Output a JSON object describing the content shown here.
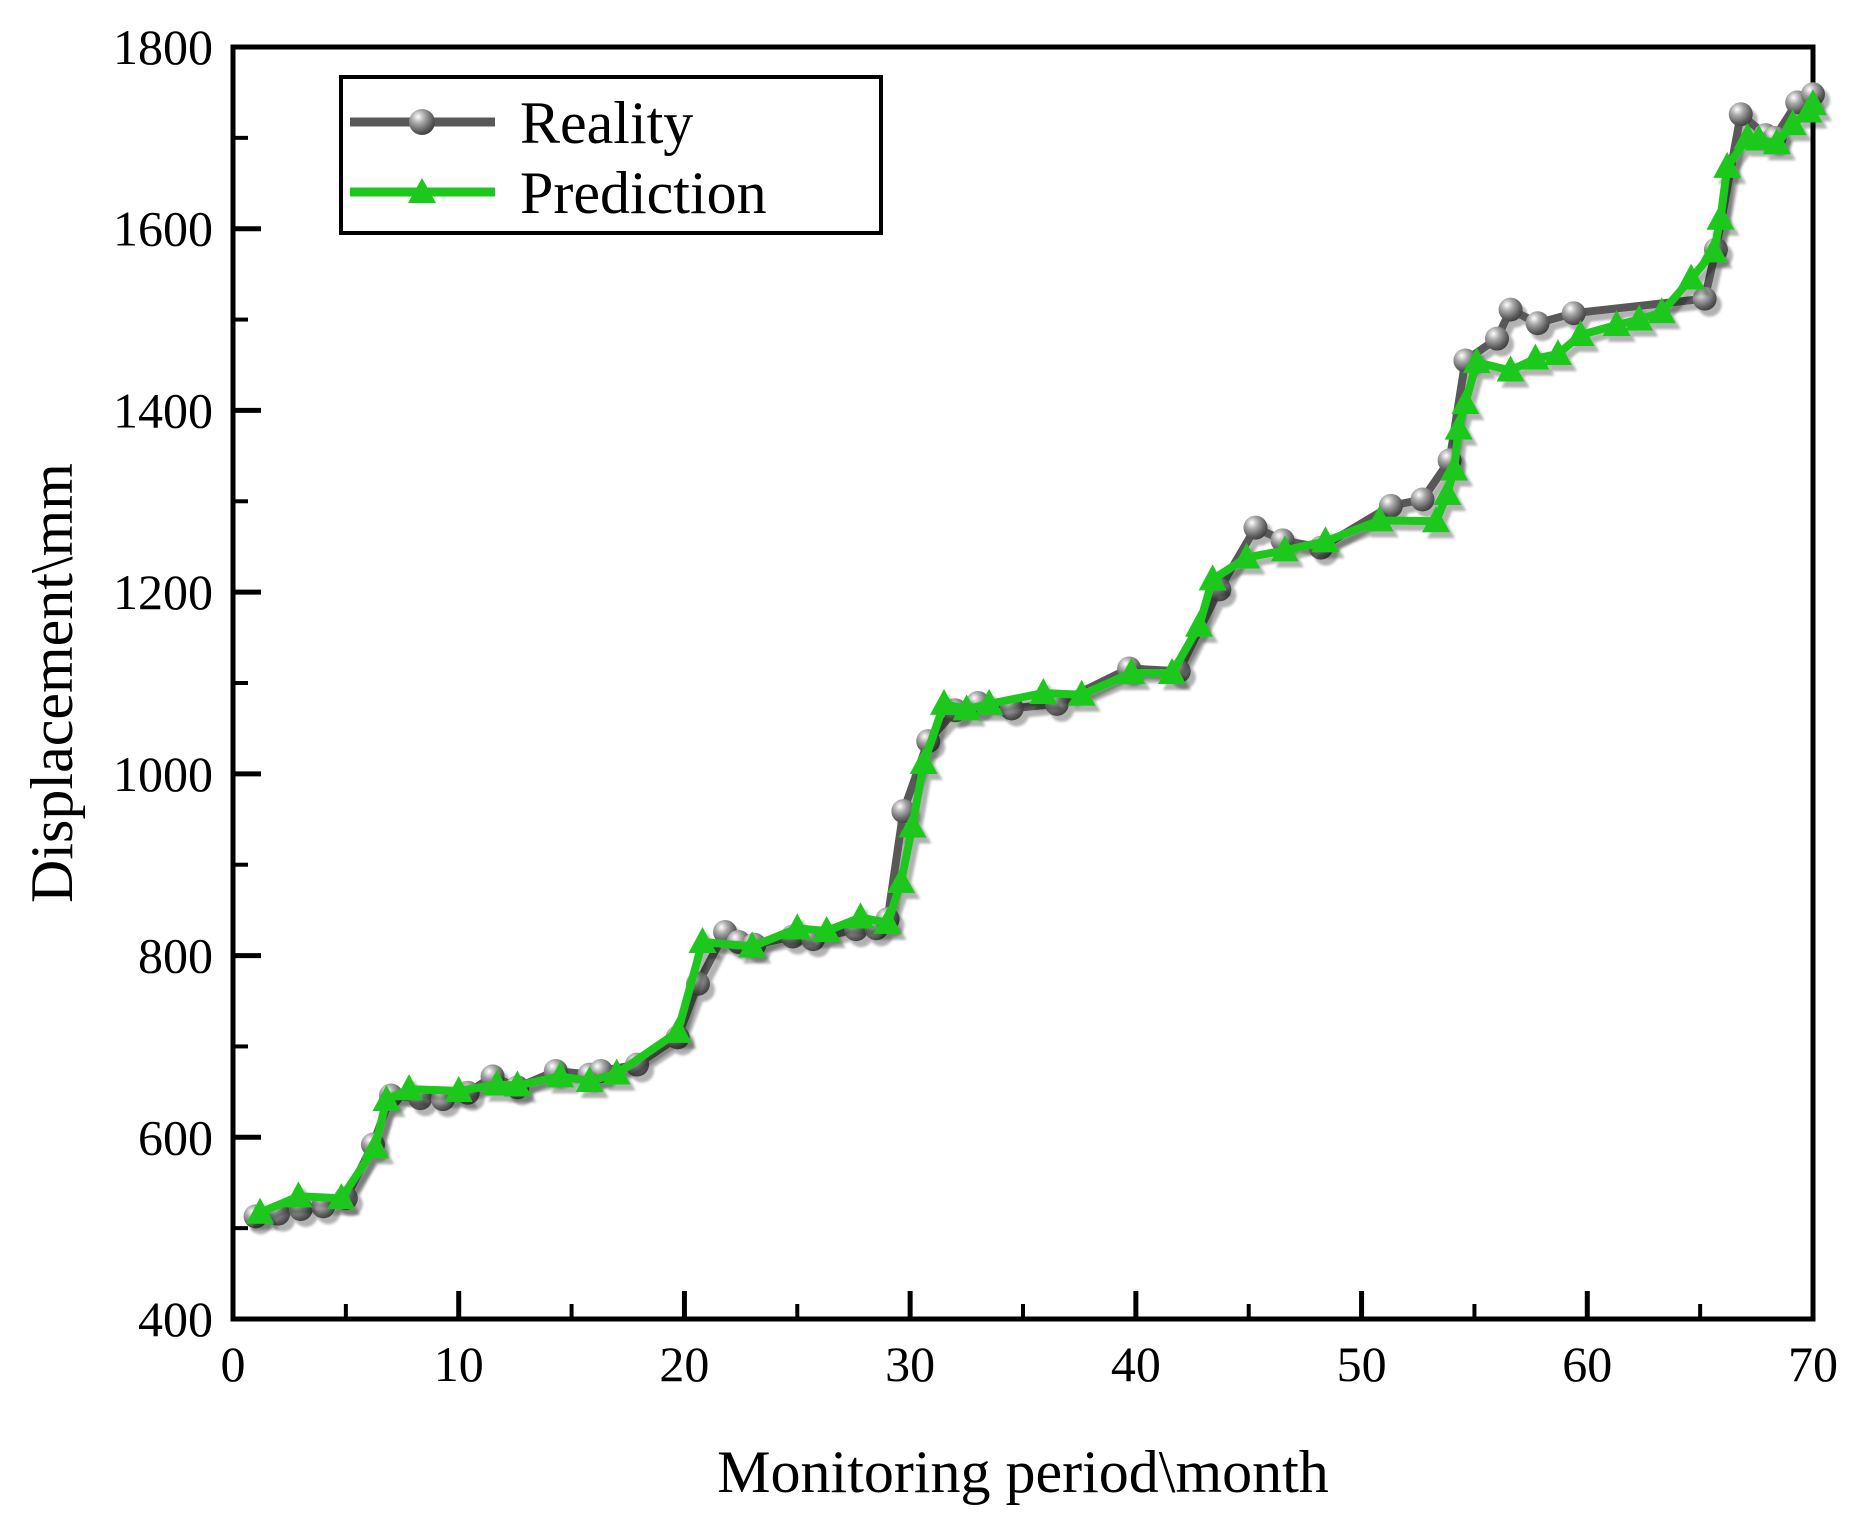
{
  "chart_data": {
    "type": "line",
    "title": "",
    "xlabel": "Monitoring period\\month",
    "ylabel": "Displacement\\mm",
    "xlim": [
      0,
      70
    ],
    "ylim": [
      400,
      1800
    ],
    "x_major_ticks": [
      0,
      10,
      20,
      30,
      40,
      50,
      60,
      70
    ],
    "x_minor_step": 5,
    "y_major_ticks": [
      400,
      600,
      800,
      1000,
      1200,
      1400,
      1600,
      1800
    ],
    "y_minor_step": 100,
    "grid": false,
    "legend_position": "top-left",
    "series": [
      {
        "name": "Reality",
        "color": "#595959",
        "marker": "circle",
        "points": [
          [
            1.0,
            513
          ],
          [
            2.0,
            516
          ],
          [
            3.0,
            521
          ],
          [
            4.0,
            524
          ],
          [
            5.0,
            533
          ],
          [
            6.2,
            592
          ],
          [
            7.0,
            646
          ],
          [
            8.3,
            643
          ],
          [
            9.3,
            642
          ],
          [
            10.4,
            649
          ],
          [
            11.5,
            667
          ],
          [
            12.6,
            655
          ],
          [
            14.3,
            673
          ],
          [
            15.8,
            669
          ],
          [
            16.3,
            673
          ],
          [
            17.9,
            680
          ],
          [
            19.7,
            710
          ],
          [
            20.6,
            769
          ],
          [
            21.8,
            826
          ],
          [
            22.4,
            815
          ],
          [
            23.1,
            812
          ],
          [
            24.8,
            821
          ],
          [
            25.7,
            818
          ],
          [
            27.6,
            829
          ],
          [
            28.5,
            830
          ],
          [
            29.0,
            840
          ],
          [
            29.7,
            959
          ],
          [
            30.8,
            1036
          ],
          [
            32.0,
            1070
          ],
          [
            33.0,
            1078
          ],
          [
            34.5,
            1072
          ],
          [
            36.5,
            1077
          ],
          [
            39.7,
            1116
          ],
          [
            41.9,
            1113
          ],
          [
            43.7,
            1203
          ],
          [
            45.3,
            1271
          ],
          [
            46.5,
            1257
          ],
          [
            48.2,
            1249
          ],
          [
            51.3,
            1295
          ],
          [
            52.7,
            1302
          ],
          [
            53.9,
            1345
          ],
          [
            54.6,
            1455
          ],
          [
            56.0,
            1479
          ],
          [
            56.6,
            1511
          ],
          [
            57.8,
            1496
          ],
          [
            59.4,
            1507
          ],
          [
            65.2,
            1523
          ],
          [
            65.7,
            1577
          ],
          [
            66.8,
            1726
          ],
          [
            67.9,
            1703
          ],
          [
            68.3,
            1700
          ],
          [
            69.3,
            1739
          ],
          [
            70.0,
            1748
          ]
        ]
      },
      {
        "name": "Prediction",
        "color": "#1dc81d",
        "marker": "triangle",
        "points": [
          [
            1.2,
            517
          ],
          [
            2.9,
            535
          ],
          [
            4.8,
            533
          ],
          [
            6.3,
            589
          ],
          [
            6.8,
            641
          ],
          [
            7.8,
            653
          ],
          [
            10.0,
            651
          ],
          [
            11.7,
            658
          ],
          [
            12.6,
            657
          ],
          [
            14.5,
            667
          ],
          [
            15.8,
            662
          ],
          [
            17.0,
            670
          ],
          [
            19.7,
            716
          ],
          [
            20.8,
            815
          ],
          [
            23.0,
            810
          ],
          [
            25.0,
            830
          ],
          [
            26.3,
            827
          ],
          [
            27.8,
            842
          ],
          [
            29.0,
            836
          ],
          [
            29.6,
            881
          ],
          [
            30.1,
            942
          ],
          [
            30.6,
            1012
          ],
          [
            31.5,
            1077
          ],
          [
            32.5,
            1071
          ],
          [
            33.5,
            1077
          ],
          [
            35.9,
            1089
          ],
          [
            37.6,
            1087
          ],
          [
            39.8,
            1111
          ],
          [
            41.6,
            1111
          ],
          [
            42.8,
            1163
          ],
          [
            43.4,
            1214
          ],
          [
            44.9,
            1238
          ],
          [
            46.6,
            1246
          ],
          [
            48.4,
            1256
          ],
          [
            50.8,
            1279
          ],
          [
            53.3,
            1278
          ],
          [
            53.8,
            1308
          ],
          [
            54.1,
            1335
          ],
          [
            54.3,
            1380
          ],
          [
            54.6,
            1408
          ],
          [
            55.1,
            1453
          ],
          [
            56.6,
            1444
          ],
          [
            57.7,
            1457
          ],
          [
            58.7,
            1462
          ],
          [
            59.7,
            1483
          ],
          [
            61.3,
            1494
          ],
          [
            62.3,
            1500
          ],
          [
            63.3,
            1508
          ],
          [
            64.6,
            1545
          ],
          [
            65.6,
            1575
          ],
          [
            65.9,
            1611
          ],
          [
            66.2,
            1668
          ],
          [
            67.1,
            1700
          ],
          [
            67.6,
            1698
          ],
          [
            68.4,
            1694
          ],
          [
            69.1,
            1715
          ],
          [
            69.8,
            1729
          ],
          [
            70.0,
            1737
          ]
        ]
      }
    ]
  },
  "axes": {
    "x_title": "Monitoring period\\month",
    "y_title": "Displacement\\mm",
    "x_tick_labels": [
      "0",
      "10",
      "20",
      "30",
      "40",
      "50",
      "60",
      "70"
    ],
    "y_tick_labels": [
      "400",
      "600",
      "800",
      "1000",
      "1200",
      "1400",
      "1600",
      "1800"
    ]
  },
  "legend": {
    "items": [
      {
        "label": "Reality"
      },
      {
        "label": "Prediction"
      }
    ]
  },
  "colors": {
    "frame": "#000000",
    "reality_line": "#595959",
    "prediction_line": "#1dc81d",
    "background": "#ffffff"
  }
}
